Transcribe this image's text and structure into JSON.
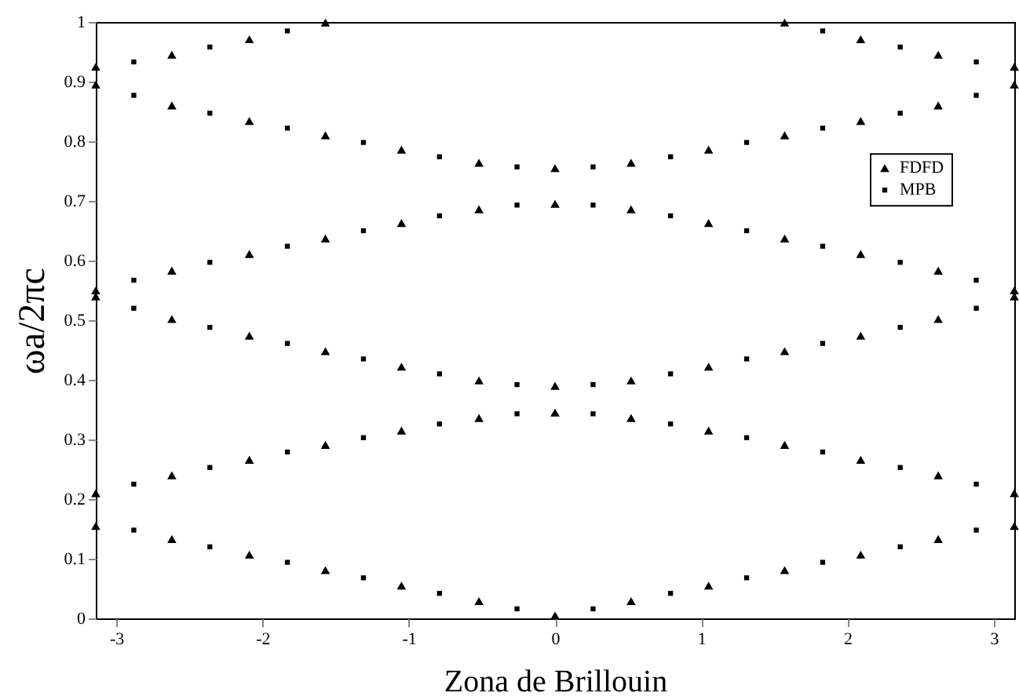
{
  "chart_data": {
    "type": "scatter",
    "xlabel": "Zona de Brillouin",
    "ylabel": "ωa/2πc",
    "xlim": [
      -3.14,
      3.14
    ],
    "ylim": [
      0,
      1
    ],
    "xticks": [
      -3,
      -2,
      -1,
      0,
      1,
      2,
      3
    ],
    "yticks": [
      0,
      0.1,
      0.2,
      0.3,
      0.4,
      0.5,
      0.6,
      0.7,
      0.8,
      0.9,
      1
    ],
    "grid": false,
    "legend": "right",
    "series": [
      {
        "name": "FDFD",
        "color": "#000000",
        "marker": "triangle",
        "x": [
          -3.14,
          -2.62,
          -2.09,
          -1.57,
          -1.05,
          -0.52,
          0,
          0.52,
          1.05,
          1.57,
          2.09,
          2.62,
          3.14,
          -3.14,
          -2.62,
          -2.09,
          -1.57,
          -1.05,
          -0.52,
          0,
          0.52,
          1.05,
          1.57,
          2.09,
          2.62,
          3.14,
          -3.14,
          -2.62,
          -2.09,
          -1.57,
          -1.05,
          -0.52,
          0,
          0.52,
          1.05,
          1.57,
          2.09,
          2.62,
          3.14,
          -3.14,
          -2.62,
          -2.09,
          -1.57,
          -1.05,
          -0.52,
          0,
          0.52,
          1.05,
          1.57,
          2.09,
          2.62,
          3.14,
          -3.14,
          -2.62,
          -2.09,
          -1.57,
          -1.05,
          -0.52,
          0,
          0.52,
          1.05,
          1.57,
          2.09,
          2.62,
          3.14,
          -3.14,
          -2.62,
          -2.09,
          -1.57,
          1.57,
          2.09,
          2.62,
          3.14
        ],
        "values": [
          0.155,
          0.133,
          0.107,
          0.081,
          0.055,
          0.029,
          0.005,
          0.029,
          0.055,
          0.081,
          0.107,
          0.133,
          0.155,
          0.21,
          0.24,
          0.266,
          0.291,
          0.315,
          0.336,
          0.345,
          0.336,
          0.315,
          0.291,
          0.266,
          0.24,
          0.21,
          0.54,
          0.502,
          0.474,
          0.448,
          0.422,
          0.399,
          0.39,
          0.399,
          0.422,
          0.448,
          0.474,
          0.502,
          0.54,
          0.55,
          0.583,
          0.611,
          0.637,
          0.663,
          0.686,
          0.695,
          0.686,
          0.663,
          0.637,
          0.611,
          0.583,
          0.55,
          0.895,
          0.86,
          0.834,
          0.81,
          0.786,
          0.764,
          0.755,
          0.764,
          0.786,
          0.81,
          0.834,
          0.86,
          0.895,
          0.925,
          0.945,
          0.971,
          0.999,
          0.999,
          0.971,
          0.945,
          0.925
        ]
      },
      {
        "name": "MPB",
        "color": "#000000",
        "marker": "square",
        "x": [
          -2.88,
          -2.36,
          -1.83,
          -1.31,
          -0.79,
          -0.26,
          0.26,
          0.79,
          1.31,
          1.83,
          2.36,
          2.88,
          -2.88,
          -2.36,
          -1.83,
          -1.31,
          -0.79,
          -0.26,
          0.26,
          0.79,
          1.31,
          1.83,
          2.36,
          2.88,
          -2.88,
          -2.36,
          -1.83,
          -1.31,
          -0.79,
          -0.26,
          0.26,
          0.79,
          1.31,
          1.83,
          2.36,
          2.88,
          -2.88,
          -2.36,
          -1.83,
          -1.31,
          -0.79,
          -0.26,
          0.26,
          0.79,
          1.31,
          1.83,
          2.36,
          2.88,
          -2.88,
          -2.36,
          -1.83,
          -1.31,
          -0.79,
          -0.26,
          0.26,
          0.79,
          1.31,
          1.83,
          2.36,
          2.88,
          -2.88,
          -2.36,
          -1.83,
          1.83,
          2.36,
          2.88
        ],
        "values": [
          0.148,
          0.12,
          0.094,
          0.068,
          0.042,
          0.016,
          0.016,
          0.042,
          0.068,
          0.094,
          0.12,
          0.148,
          0.225,
          0.253,
          0.279,
          0.303,
          0.326,
          0.343,
          0.343,
          0.326,
          0.303,
          0.279,
          0.253,
          0.225,
          0.52,
          0.488,
          0.461,
          0.435,
          0.41,
          0.392,
          0.392,
          0.41,
          0.435,
          0.461,
          0.488,
          0.52,
          0.567,
          0.597,
          0.624,
          0.65,
          0.675,
          0.693,
          0.693,
          0.675,
          0.65,
          0.624,
          0.597,
          0.567,
          0.877,
          0.847,
          0.822,
          0.798,
          0.774,
          0.757,
          0.757,
          0.774,
          0.798,
          0.822,
          0.847,
          0.877,
          0.933,
          0.958,
          0.985,
          0.985,
          0.958,
          0.933
        ]
      }
    ]
  }
}
